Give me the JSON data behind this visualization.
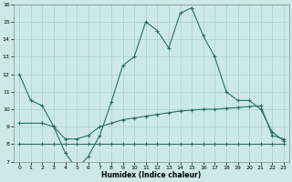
{
  "xlabel": "Humidex (Indice chaleur)",
  "bg_color": "#cce9e7",
  "grid_color": "#aed4d2",
  "line_color": "#2e6e65",
  "xlim": [
    -0.5,
    23.5
  ],
  "ylim": [
    7,
    16
  ],
  "xticks": [
    0,
    1,
    2,
    3,
    4,
    5,
    6,
    7,
    8,
    9,
    10,
    11,
    12,
    13,
    14,
    15,
    16,
    17,
    18,
    19,
    20,
    21,
    22,
    23
  ],
  "yticks": [
    7,
    8,
    9,
    10,
    11,
    12,
    13,
    14,
    15,
    16
  ],
  "line1_x": [
    0,
    1,
    2,
    3,
    4,
    5,
    6,
    7,
    8,
    9,
    10,
    11,
    12,
    13,
    14,
    15,
    16,
    17,
    18,
    19,
    20,
    21,
    22,
    23
  ],
  "line1_y": [
    12.0,
    10.5,
    10.2,
    9.0,
    7.5,
    6.6,
    7.3,
    8.5,
    10.4,
    12.5,
    13.0,
    15.0,
    14.5,
    13.5,
    15.5,
    15.8,
    14.2,
    13.0,
    11.0,
    10.5,
    10.5,
    10.0,
    8.7,
    8.2
  ],
  "line2_x": [
    0,
    2,
    3,
    4,
    5,
    6,
    7,
    8,
    9,
    10,
    11,
    12,
    13,
    14,
    15,
    16,
    17,
    18,
    19,
    20,
    21,
    22,
    23
  ],
  "line2_y": [
    9.2,
    9.2,
    9.0,
    8.3,
    8.3,
    8.5,
    9.0,
    9.2,
    9.4,
    9.5,
    9.6,
    9.7,
    9.8,
    9.9,
    9.95,
    10.0,
    10.0,
    10.05,
    10.1,
    10.15,
    10.2,
    8.5,
    8.3
  ],
  "line3_x": [
    0,
    2,
    3,
    4,
    5,
    6,
    7,
    8,
    9,
    10,
    11,
    12,
    13,
    14,
    15,
    16,
    17,
    18,
    19,
    20,
    21,
    22,
    23
  ],
  "line3_y": [
    8.0,
    8.0,
    8.0,
    8.0,
    8.0,
    8.0,
    8.0,
    8.0,
    8.0,
    8.0,
    8.0,
    8.0,
    8.0,
    8.0,
    8.0,
    8.0,
    8.0,
    8.0,
    8.0,
    8.0,
    8.0,
    8.0,
    8.0
  ]
}
